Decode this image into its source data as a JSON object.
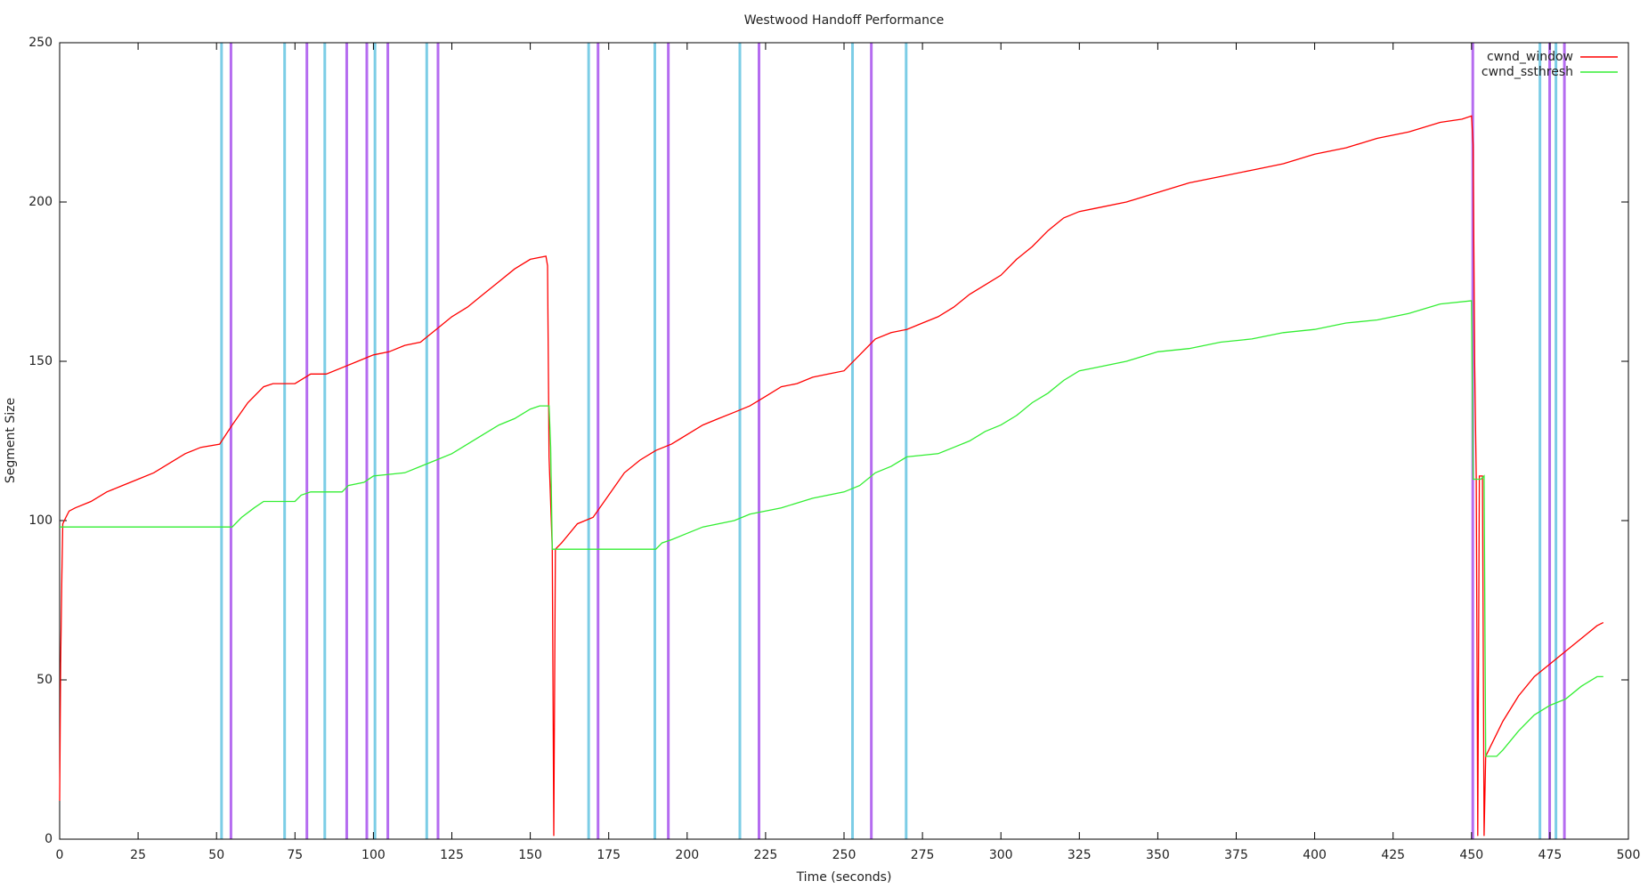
{
  "chart_data": {
    "type": "line",
    "title": "Westwood Handoff Performance",
    "x_label": "Time (seconds)",
    "y_label": "Segment Size",
    "xlim": [
      0,
      500
    ],
    "ylim": [
      0,
      250
    ],
    "xticks": [
      0,
      25,
      50,
      75,
      100,
      125,
      150,
      175,
      200,
      225,
      250,
      275,
      300,
      325,
      350,
      375,
      400,
      425,
      450,
      475,
      500
    ],
    "yticks": [
      0,
      50,
      100,
      150,
      200,
      250
    ],
    "grid": false,
    "legend": "top-right",
    "markers": [
      {
        "color": "#7ccde6",
        "x": [
          51.6,
          71.7,
          84.5,
          100.5,
          117,
          168.6,
          189.7,
          216.8,
          252.7,
          269.8,
          471.8,
          476.9
        ]
      },
      {
        "color": "#b56cf0",
        "x": [
          54.6,
          78.8,
          91.5,
          97.9,
          104.6,
          120.6,
          171.6,
          194,
          222.9,
          258.7,
          450.4,
          474.9,
          479.6
        ]
      }
    ],
    "series": [
      {
        "name": "cwnd_window",
        "color": "#ff0000",
        "x": [
          0,
          0.3,
          0.7,
          1,
          2,
          3,
          5,
          10,
          15,
          20,
          25,
          30,
          35,
          40,
          45,
          51,
          55,
          60,
          65,
          68,
          75,
          80,
          85,
          90,
          95,
          100,
          105,
          110,
          115,
          120,
          125,
          130,
          135,
          140,
          145,
          150,
          155,
          155.5,
          156,
          157,
          157.5,
          158,
          160,
          165,
          170,
          175,
          180,
          185,
          190,
          195,
          200,
          205,
          210,
          215,
          220,
          225,
          230,
          235,
          240,
          245,
          250,
          255,
          260,
          265,
          270,
          275,
          280,
          285,
          290,
          295,
          300,
          305,
          310,
          315,
          320,
          325,
          330,
          340,
          350,
          360,
          370,
          380,
          390,
          400,
          410,
          420,
          430,
          440,
          447,
          450,
          450.5,
          451,
          451.5,
          452,
          452.5,
          453.5,
          454,
          454.5,
          456,
          460,
          465,
          470,
          475,
          480,
          485,
          490,
          492
        ],
        "values": [
          12,
          55,
          83,
          99,
          101,
          103,
          104,
          106,
          109,
          111,
          113,
          115,
          118,
          121,
          123,
          124,
          130,
          137,
          142,
          143,
          143,
          146,
          146,
          148,
          150,
          152,
          153,
          155,
          156,
          160,
          164,
          167,
          171,
          175,
          179,
          182,
          183,
          180,
          120,
          91,
          1,
          91,
          93,
          99,
          101,
          108,
          115,
          119,
          122,
          124,
          127,
          130,
          132,
          134,
          136,
          139,
          142,
          143,
          145,
          146,
          147,
          152,
          157,
          159,
          160,
          162,
          164,
          167,
          171,
          174,
          177,
          182,
          186,
          191,
          195,
          197,
          198,
          200,
          203,
          206,
          208,
          210,
          212,
          215,
          217,
          220,
          222,
          225,
          226,
          227,
          218,
          150,
          113,
          1,
          114,
          114,
          1,
          26,
          29,
          37,
          45,
          51,
          55,
          59,
          63,
          67,
          68
        ]
      },
      {
        "name": "cwnd_ssthresh",
        "color": "#33ee33",
        "x": [
          0,
          55,
          58,
          62,
          65,
          75,
          77,
          80,
          90,
          92,
          97,
          100,
          110,
          115,
          120,
          125,
          130,
          135,
          140,
          145,
          150,
          153,
          156,
          156.5,
          157,
          158,
          190,
          192,
          195,
          200,
          205,
          215,
          220,
          230,
          240,
          250,
          255,
          260,
          265,
          270,
          280,
          285,
          290,
          295,
          300,
          305,
          310,
          315,
          320,
          325,
          330,
          340,
          350,
          360,
          370,
          380,
          390,
          400,
          410,
          420,
          430,
          440,
          450,
          450.5,
          453,
          454,
          454.5,
          458,
          460,
          465,
          470,
          475,
          480,
          485,
          490,
          492
        ],
        "values": [
          98,
          98,
          101,
          104,
          106,
          106,
          108,
          109,
          109,
          111,
          112,
          114,
          115,
          117,
          119,
          121,
          124,
          127,
          130,
          132,
          135,
          136,
          136,
          123,
          91,
          91,
          91,
          93,
          94,
          96,
          98,
          100,
          102,
          104,
          107,
          109,
          111,
          115,
          117,
          120,
          121,
          123,
          125,
          128,
          130,
          133,
          137,
          140,
          144,
          147,
          148,
          150,
          153,
          154,
          156,
          157,
          159,
          160,
          162,
          163,
          165,
          168,
          169,
          113,
          113,
          114,
          26,
          26,
          28,
          34,
          39,
          42,
          44,
          48,
          51,
          51
        ]
      }
    ]
  }
}
